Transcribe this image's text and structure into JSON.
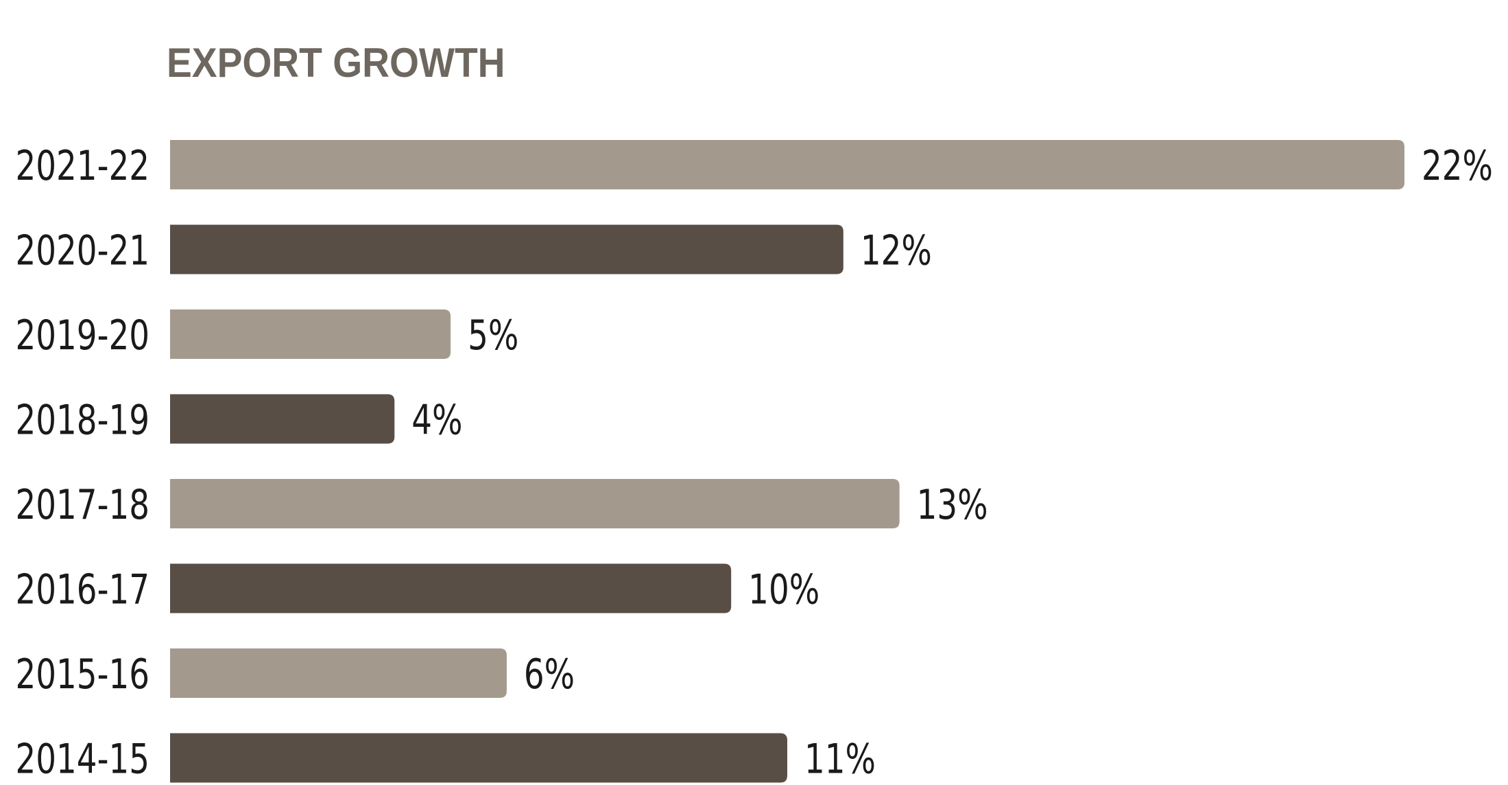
{
  "chart_data": {
    "type": "bar",
    "orientation": "horizontal",
    "title": "EXPORT GROWTH",
    "xlabel": "",
    "ylabel": "",
    "categories": [
      "2021-22",
      "2020-21",
      "2019-20",
      "2018-19",
      "2017-18",
      "2016-17",
      "2015-16",
      "2014-15"
    ],
    "values": [
      22,
      12,
      5,
      4,
      13,
      10,
      6,
      11
    ],
    "value_labels": [
      "22%",
      "12%",
      "5%",
      "4%",
      "13%",
      "10%",
      "6%",
      "11%"
    ],
    "unit": "%",
    "xlim": [
      0,
      22
    ],
    "grid": false,
    "legend": "none",
    "colors": {
      "light": "#a39a8d",
      "dark": "#584e46",
      "title": "#6e6760",
      "text": "#1a1a1a"
    },
    "bar_colors": [
      "light",
      "dark",
      "light",
      "dark",
      "light",
      "dark",
      "light",
      "dark"
    ]
  }
}
